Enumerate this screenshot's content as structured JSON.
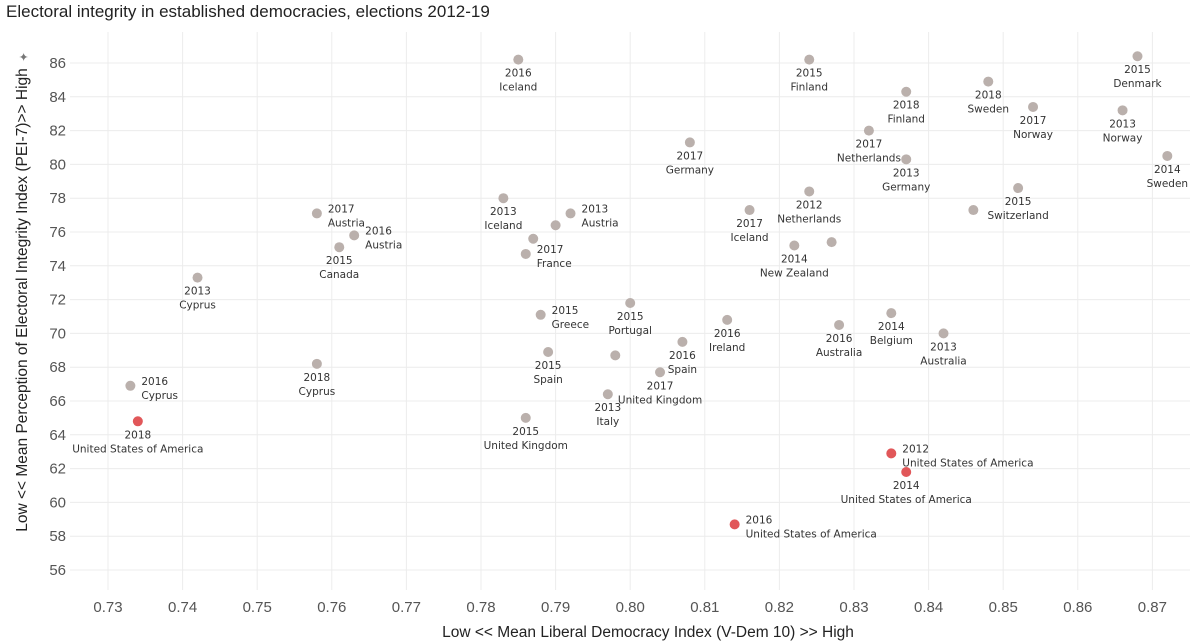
{
  "chart_data": {
    "type": "scatter",
    "title": "Electoral integrity in established democracies, elections 2012-19",
    "xlabel": "Low << Mean Liberal Democracy Index (V-Dem 10) >> High",
    "ylabel": "Low << Mean Perception of Electoral Integrity Index  (PEI-7)>> High",
    "xlim": [
      0.725,
      0.875
    ],
    "ylim": [
      55,
      87.5
    ],
    "xticks": [
      "0.73",
      "0.74",
      "0.75",
      "0.76",
      "0.77",
      "0.78",
      "0.79",
      "0.80",
      "0.81",
      "0.82",
      "0.83",
      "0.84",
      "0.85",
      "0.86",
      "0.87"
    ],
    "yticks": [
      "56",
      "58",
      "60",
      "62",
      "64",
      "66",
      "68",
      "70",
      "72",
      "74",
      "76",
      "78",
      "80",
      "82",
      "84",
      "86"
    ],
    "grid": true,
    "colors": {
      "default": "#bab0ac",
      "highlight": "#e15759"
    },
    "points": [
      {
        "x": 0.785,
        "y": 86.2,
        "year": "2016",
        "country": "Iceland",
        "lp": "below",
        "c": "default"
      },
      {
        "x": 0.824,
        "y": 86.2,
        "year": "2015",
        "country": "Finland",
        "lp": "below",
        "c": "default"
      },
      {
        "x": 0.868,
        "y": 86.4,
        "year": "2015",
        "country": "Denmark",
        "lp": "below",
        "c": "default"
      },
      {
        "x": 0.848,
        "y": 84.9,
        "year": "2018",
        "country": "Sweden",
        "lp": "below",
        "c": "default"
      },
      {
        "x": 0.837,
        "y": 84.3,
        "year": "2018",
        "country": "Finland",
        "lp": "below",
        "c": "default"
      },
      {
        "x": 0.854,
        "y": 83.4,
        "year": "2017",
        "country": "Norway",
        "lp": "below",
        "c": "default"
      },
      {
        "x": 0.866,
        "y": 83.2,
        "year": "2013",
        "country": "Norway",
        "lp": "below",
        "c": "default"
      },
      {
        "x": 0.832,
        "y": 82.0,
        "year": "2017",
        "country": "Netherlands",
        "lp": "below",
        "c": "default"
      },
      {
        "x": 0.808,
        "y": 81.3,
        "year": "2017",
        "country": "Germany",
        "lp": "below",
        "c": "default"
      },
      {
        "x": 0.872,
        "y": 80.5,
        "year": "2014",
        "country": "Sweden",
        "lp": "below",
        "c": "default"
      },
      {
        "x": 0.837,
        "y": 80.3,
        "year": "2013",
        "country": "Germany",
        "lp": "below",
        "c": "default"
      },
      {
        "x": 0.852,
        "y": 78.6,
        "year": "2015",
        "country": "Switzerland",
        "lp": "below",
        "c": "default"
      },
      {
        "x": 0.824,
        "y": 78.4,
        "year": "2012",
        "country": "Netherlands",
        "lp": "below",
        "c": "default"
      },
      {
        "x": 0.783,
        "y": 78.0,
        "year": "2013",
        "country": "Iceland",
        "lp": "below",
        "c": "default"
      },
      {
        "x": 0.846,
        "y": 77.3,
        "year": "",
        "country": "",
        "lp": "none",
        "c": "default"
      },
      {
        "x": 0.816,
        "y": 77.3,
        "year": "2017",
        "country": "Iceland",
        "lp": "below",
        "c": "default"
      },
      {
        "x": 0.758,
        "y": 77.1,
        "year": "2017",
        "country": "Austria",
        "lp": "right",
        "c": "default"
      },
      {
        "x": 0.792,
        "y": 77.1,
        "year": "2013",
        "country": "Austria",
        "lp": "right",
        "c": "default"
      },
      {
        "x": 0.79,
        "y": 76.4,
        "year": "",
        "country": "",
        "lp": "none",
        "c": "default"
      },
      {
        "x": 0.763,
        "y": 75.8,
        "year": "2016",
        "country": "Austria",
        "lp": "right",
        "c": "default"
      },
      {
        "x": 0.787,
        "y": 75.6,
        "year": "",
        "country": "",
        "lp": "none",
        "c": "default"
      },
      {
        "x": 0.827,
        "y": 75.4,
        "year": "",
        "country": "",
        "lp": "none",
        "c": "default"
      },
      {
        "x": 0.822,
        "y": 75.2,
        "year": "2014",
        "country": "New Zealand",
        "lp": "below",
        "c": "default"
      },
      {
        "x": 0.761,
        "y": 75.1,
        "year": "2015",
        "country": "Canada",
        "lp": "below",
        "c": "default"
      },
      {
        "x": 0.786,
        "y": 74.7,
        "year": "2017",
        "country": "France",
        "lp": "right",
        "c": "default"
      },
      {
        "x": 0.742,
        "y": 73.3,
        "year": "2013",
        "country": "Cyprus",
        "lp": "below",
        "c": "default"
      },
      {
        "x": 0.8,
        "y": 71.8,
        "year": "2015",
        "country": "Portugal",
        "lp": "below",
        "c": "default"
      },
      {
        "x": 0.835,
        "y": 71.2,
        "year": "2014",
        "country": "Belgium",
        "lp": "below",
        "c": "default"
      },
      {
        "x": 0.788,
        "y": 71.1,
        "year": "2015",
        "country": "Greece",
        "lp": "right",
        "c": "default"
      },
      {
        "x": 0.813,
        "y": 70.8,
        "year": "2016",
        "country": "Ireland",
        "lp": "below",
        "c": "default"
      },
      {
        "x": 0.828,
        "y": 70.5,
        "year": "2016",
        "country": "Australia",
        "lp": "below",
        "c": "default"
      },
      {
        "x": 0.842,
        "y": 70.0,
        "year": "2013",
        "country": "Australia",
        "lp": "below",
        "c": "default"
      },
      {
        "x": 0.807,
        "y": 69.5,
        "year": "2016",
        "country": "Spain",
        "lp": "below",
        "c": "default"
      },
      {
        "x": 0.789,
        "y": 68.9,
        "year": "2015",
        "country": "Spain",
        "lp": "below",
        "c": "default"
      },
      {
        "x": 0.798,
        "y": 68.7,
        "year": "",
        "country": "",
        "lp": "none",
        "c": "default"
      },
      {
        "x": 0.758,
        "y": 68.2,
        "year": "2018",
        "country": "Cyprus",
        "lp": "below",
        "c": "default"
      },
      {
        "x": 0.804,
        "y": 67.7,
        "year": "2017",
        "country": "United Kingdom",
        "lp": "below",
        "c": "default"
      },
      {
        "x": 0.733,
        "y": 66.9,
        "year": "2016",
        "country": "Cyprus",
        "lp": "right",
        "c": "default"
      },
      {
        "x": 0.797,
        "y": 66.4,
        "year": "2013",
        "country": "Italy",
        "lp": "below",
        "c": "default"
      },
      {
        "x": 0.786,
        "y": 65.0,
        "year": "2015",
        "country": "United Kingdom",
        "lp": "below",
        "c": "default"
      },
      {
        "x": 0.734,
        "y": 64.8,
        "year": "2018",
        "country": "United States of America",
        "lp": "below",
        "c": "highlight"
      },
      {
        "x": 0.835,
        "y": 62.9,
        "year": "2012",
        "country": "United States of America",
        "lp": "right",
        "c": "highlight"
      },
      {
        "x": 0.837,
        "y": 61.8,
        "year": "2014",
        "country": "United States of America",
        "lp": "below",
        "c": "highlight"
      },
      {
        "x": 0.814,
        "y": 58.7,
        "year": "2016",
        "country": "United States of America",
        "lp": "right",
        "c": "highlight"
      }
    ]
  }
}
